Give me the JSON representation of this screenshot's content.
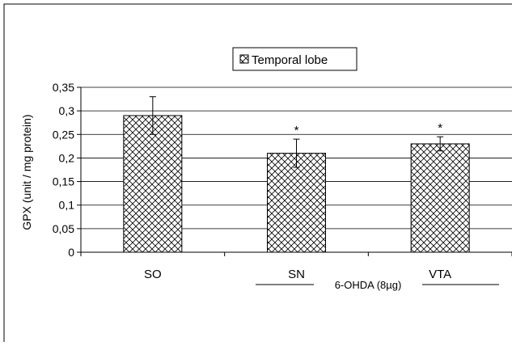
{
  "chart_data": {
    "type": "bar",
    "ylabel": "GPX (unit / mg protein)",
    "legend": {
      "label": "Temporal lobe",
      "position": "top-center"
    },
    "categories": [
      "SO",
      "SN",
      "VTA"
    ],
    "values": [
      0.29,
      0.21,
      0.23
    ],
    "error": [
      0.04,
      0.03,
      0.015
    ],
    "significance": [
      "",
      "*",
      "*"
    ],
    "ylim": [
      0,
      0.35
    ],
    "yticks": [
      "0",
      "0,05",
      "0,1",
      "0,15",
      "0,2",
      "0,25",
      "0,3",
      "0,35"
    ],
    "ytick_values": [
      0,
      0.05,
      0.1,
      0.15,
      0.2,
      0.25,
      0.3,
      0.35
    ],
    "grid": true,
    "group_label": "6-OHDA (8µg)",
    "colors": {
      "bar_fill": "#ffffff",
      "bar_hatch": "#000000",
      "axis": "#000000",
      "grid": "#000000"
    }
  }
}
